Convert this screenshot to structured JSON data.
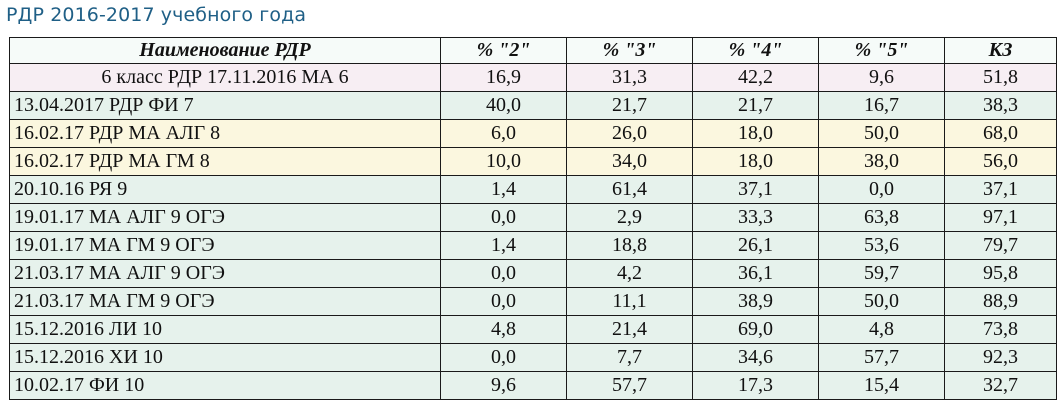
{
  "title": "РДР 2016-2017 учебного года",
  "colors": {
    "title": "#1f5f86",
    "row_pink": "#f7eef3",
    "row_green": "#e6f2ec",
    "row_yellow": "#fbf7df",
    "row_white": "#ffffff"
  },
  "table": {
    "headers": [
      "Наименование РДР",
      "% \"2\"",
      "% \"3\"",
      "% \"4\"",
      "% \"5\"",
      "КЗ"
    ],
    "rows": [
      {
        "name": "6 класс РДР 17.11.2016 МА 6",
        "p2": "16,9",
        "p3": "31,3",
        "p4": "42,2",
        "p5": "9,6",
        "kz": "51,8",
        "tint": "pink",
        "centered": true
      },
      {
        "name": "13.04.2017 РДР ФИ 7",
        "p2": "40,0",
        "p3": "21,7",
        "p4": "21,7",
        "p5": "16,7",
        "kz": "38,3",
        "tint": "green",
        "centered": false
      },
      {
        "name": "16.02.17 РДР МА АЛГ 8",
        "p2": "6,0",
        "p3": "26,0",
        "p4": "18,0",
        "p5": "50,0",
        "kz": "68,0",
        "tint": "yellow",
        "centered": false
      },
      {
        "name": "16.02.17 РДР МА ГМ 8",
        "p2": "10,0",
        "p3": "34,0",
        "p4": "18,0",
        "p5": "38,0",
        "kz": "56,0",
        "tint": "yellow",
        "centered": false
      },
      {
        "name": "20.10.16 РЯ 9",
        "p2": "1,4",
        "p3": "61,4",
        "p4": "37,1",
        "p5": "0,0",
        "kz": "37,1",
        "tint": "green",
        "centered": false
      },
      {
        "name": "19.01.17 МА АЛГ 9 ОГЭ",
        "p2": "0,0",
        "p3": "2,9",
        "p4": "33,3",
        "p5": "63,8",
        "kz": "97,1",
        "tint": "green",
        "centered": false
      },
      {
        "name": "19.01.17 МА ГМ 9 ОГЭ",
        "p2": "1,4",
        "p3": "18,8",
        "p4": "26,1",
        "p5": "53,6",
        "kz": "79,7",
        "tint": "green",
        "centered": false
      },
      {
        "name": "21.03.17 МА АЛГ 9 ОГЭ",
        "p2": "0,0",
        "p3": "4,2",
        "p4": "36,1",
        "p5": "59,7",
        "kz": "95,8",
        "tint": "green",
        "centered": false
      },
      {
        "name": "21.03.17 МА ГМ 9 ОГЭ",
        "p2": "0,0",
        "p3": "11,1",
        "p4": "38,9",
        "p5": "50,0",
        "kz": "88,9",
        "tint": "green",
        "centered": false
      },
      {
        "name": "15.12.2016 ЛИ 10",
        "p2": "4,8",
        "p3": "21,4",
        "p4": "69,0",
        "p5": "4,8",
        "kz": "73,8",
        "tint": "green",
        "centered": false
      },
      {
        "name": "15.12.2016 ХИ 10",
        "p2": "0,0",
        "p3": "7,7",
        "p4": "34,6",
        "p5": "57,7",
        "kz": "92,3",
        "tint": "green",
        "centered": false
      },
      {
        "name": "10.02.17 ФИ 10",
        "p2": "9,6",
        "p3": "57,7",
        "p4": "17,3",
        "p5": "15,4",
        "kz": "32,7",
        "tint": "green",
        "centered": false
      }
    ]
  }
}
